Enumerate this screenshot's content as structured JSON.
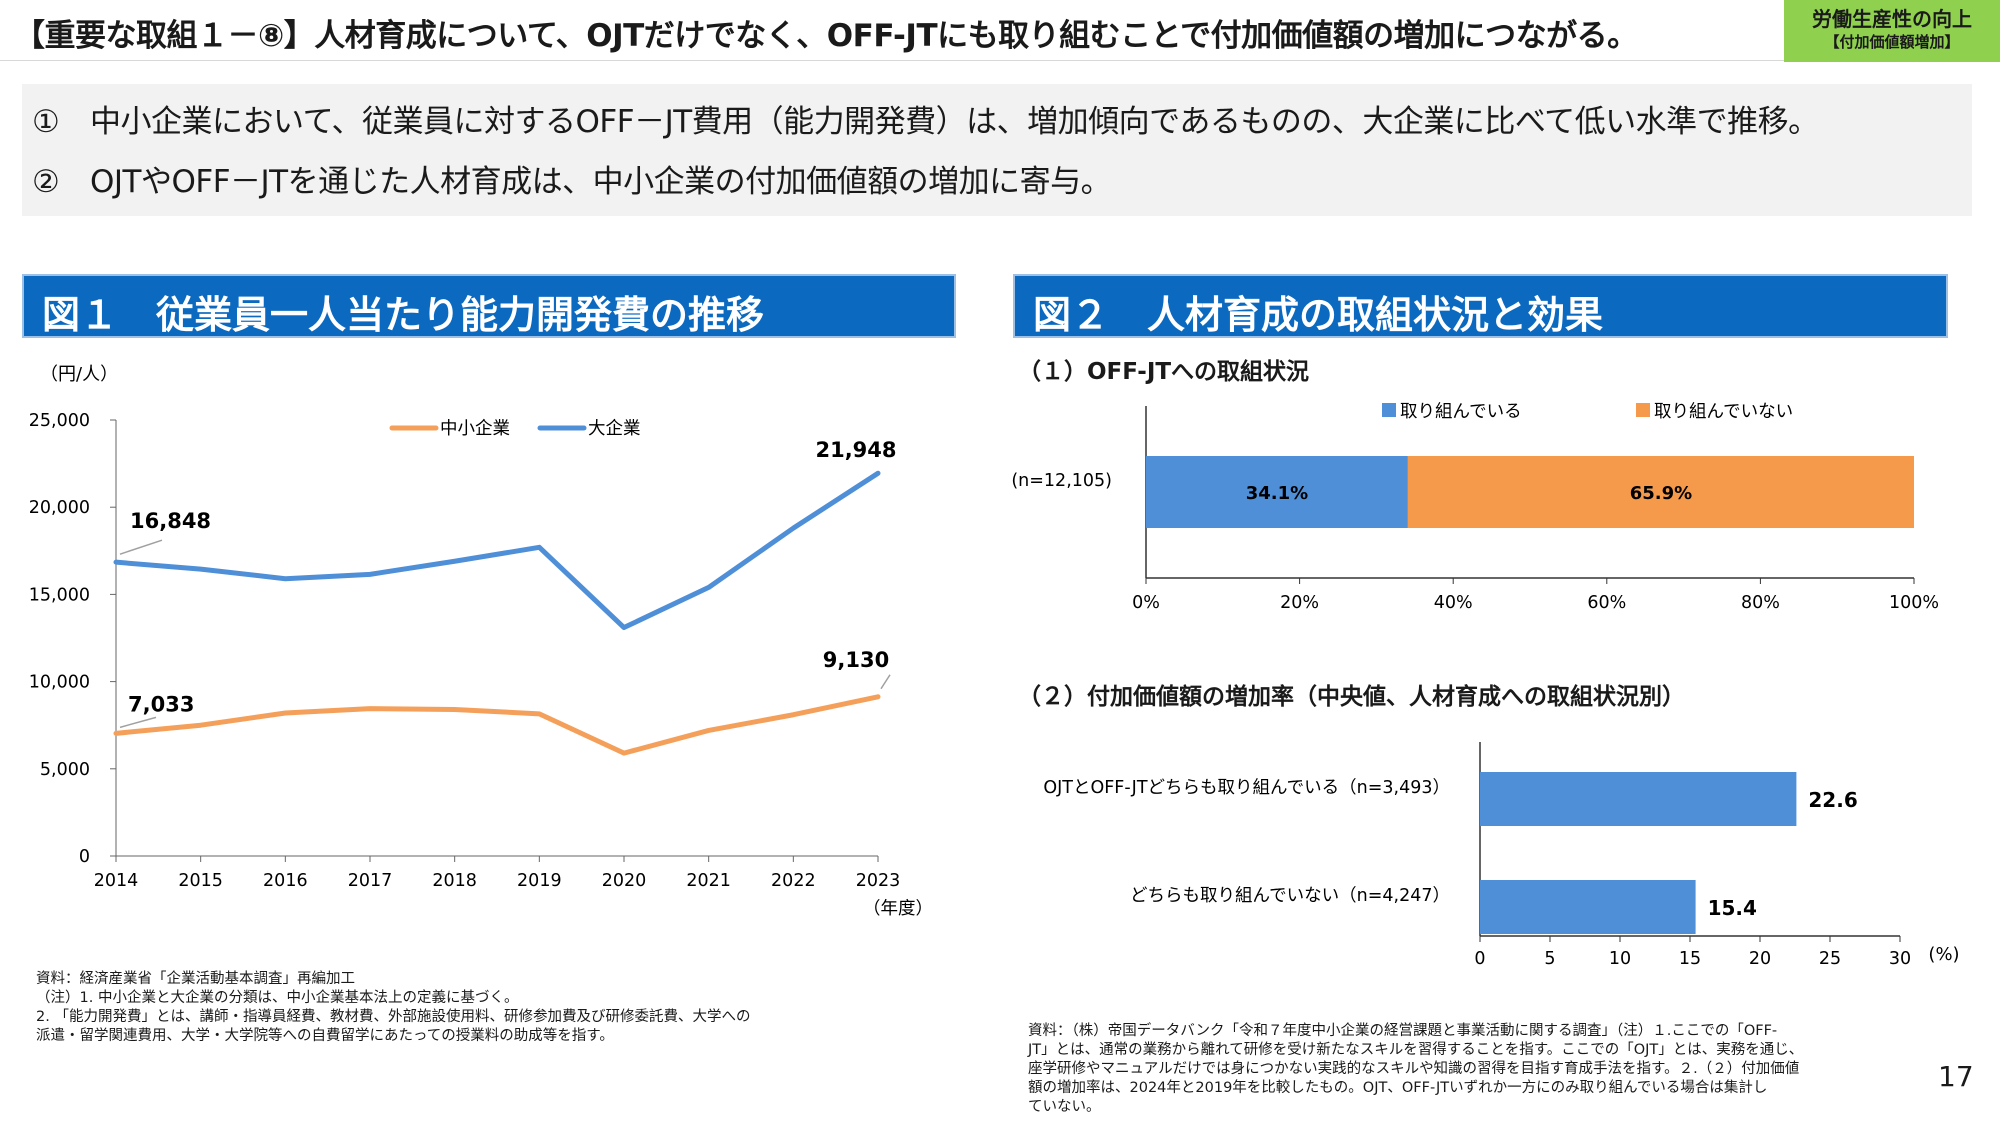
{
  "header": {
    "title": "【重要な取組１－⑧】人材育成について、OJTだけでなく、OFF-JTにも取り組むことで付加価値額の増加につながる。",
    "badge_line1": "労働生産性の向上",
    "badge_line2": "【付加価値額増加】"
  },
  "summary": {
    "items": [
      {
        "num": "①",
        "text": "中小企業において、従業員に対するOFF－JT費用（能力開発費）は、増加傾向であるものの、大企業に比べて低い水準で推移。"
      },
      {
        "num": "②",
        "text": "OJTやOFF－JTを通じた人材育成は、中小企業の付加価値額の増加に寄与。"
      }
    ]
  },
  "figure1": {
    "header": "図１　従業員一人当たり能力開発費の推移",
    "note_source": "資料：経済産業省「企業活動基本調査」再編加工",
    "note_1": "（注）1. 中小企業と大企業の分類は、中小企業基本法上の定義に基づく。",
    "note_2": "2. 「能力開発費」とは、講師・指導員経費、教材費、外部施設使用料、研修参加費及び研修委託費、大学への",
    "note_3": "派遣・留学関連費用、大学・大学院等への自費留学にあたっての授業料の助成等を指す。"
  },
  "figure2": {
    "header": "図２　人材育成の取組状況と効果",
    "sub1": "（１）OFF-JTへの取組状況",
    "sub2": "（２）付加価値額の増加率（中央値、人材育成への取組状況別）",
    "note_1": "資料：（株）帝国データバンク「令和７年度中小企業の経営課題と事業活動に関する調査」（注）１.ここでの「OFF-",
    "note_2": "JT」とは、通常の業務から離れて研修を受け新たなスキルを習得することを指す。ここでの「OJT」とは、実務を通じ、",
    "note_3": "座学研修やマニュアルだけでは身につかない実践的なスキルや知識の習得を目指す育成手法を指す。２.（２）付加価値",
    "note_4": "額の増加率は、2024年と2019年を比較したもの。OJT、OFF-JTいずれか一方にのみ取り組んでいる場合は集計し",
    "note_5": "ていない。"
  },
  "page_number": "17",
  "chart_data": [
    {
      "type": "line",
      "ylabel": "（円/人）",
      "xlabel": "（年度）",
      "x": [
        "2014",
        "2015",
        "2016",
        "2017",
        "2018",
        "2019",
        "2020",
        "2021",
        "2022",
        "2023"
      ],
      "ylim": [
        0,
        25000
      ],
      "yticks": [
        0,
        5000,
        10000,
        15000,
        20000,
        25000
      ],
      "ytick_labels": [
        "0",
        "5,000",
        "10,000",
        "15,000",
        "20,000",
        "25,000"
      ],
      "legend_position": "top",
      "series": [
        {
          "name": "中小企業",
          "color": "#f4a05a",
          "values": [
            7033,
            7500,
            8200,
            8450,
            8400,
            8150,
            5900,
            7200,
            8100,
            9130
          ],
          "labels": [
            {
              "index": 0,
              "text": "7,033"
            },
            {
              "index": 9,
              "text": "9,130"
            }
          ]
        },
        {
          "name": "大企業",
          "color": "#4f8fd8",
          "values": [
            16848,
            16450,
            15900,
            16150,
            16900,
            17700,
            13100,
            15400,
            18800,
            21948
          ],
          "labels": [
            {
              "index": 0,
              "text": "16,848"
            },
            {
              "index": 9,
              "text": "21,948"
            }
          ]
        }
      ]
    },
    {
      "type": "bar",
      "orientation": "horizontal-stacked",
      "categories": [
        "(n=12,105)"
      ],
      "series": [
        {
          "name": "取り組んでいる",
          "color": "#4f8fd8",
          "values": [
            34.1
          ],
          "label": "34.1%"
        },
        {
          "name": "取り組んでいない",
          "color": "#f59a4a",
          "values": [
            65.9
          ],
          "label": "65.9%"
        }
      ],
      "xlim": [
        0,
        100
      ],
      "xticks": [
        0,
        20,
        40,
        60,
        80,
        100
      ],
      "xtick_labels": [
        "0%",
        "20%",
        "40%",
        "60%",
        "80%",
        "100%"
      ],
      "legend_position": "top"
    },
    {
      "type": "bar",
      "orientation": "horizontal",
      "categories": [
        "OJTとOFF-JTどちらも取り組んでいる（n=3,493）",
        "どちらも取り組んでいない（n=4,247）"
      ],
      "values": [
        22.6,
        15.4
      ],
      "value_labels": [
        "22.6",
        "15.4"
      ],
      "color": "#4f8fd8",
      "xlim": [
        0,
        30
      ],
      "xticks": [
        0,
        5,
        10,
        15,
        20,
        25,
        30
      ],
      "xtick_labels": [
        "0",
        "5",
        "10",
        "15",
        "20",
        "25",
        "30"
      ],
      "xlabel": "(%)"
    }
  ]
}
